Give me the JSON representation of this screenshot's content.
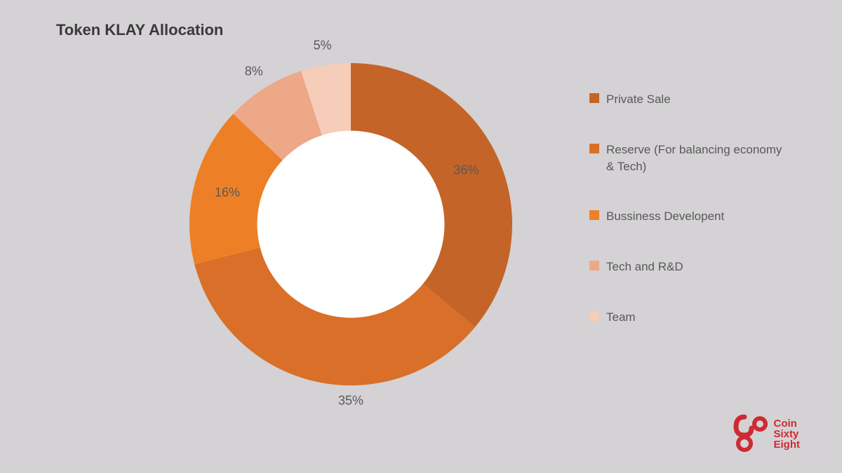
{
  "title": "Token KLAY Allocation",
  "chart": {
    "type": "donut",
    "inner_radius_ratio": 0.58,
    "background_color": "#d4d2d4",
    "center_color": "#ffffff",
    "slices": [
      {
        "label": "Private Sale",
        "value": 36,
        "display": "36%",
        "color": "#c46428"
      },
      {
        "label": "Reserve (For balancing economy & Tech)",
        "value": 35,
        "display": "35%",
        "color": "#d96f28"
      },
      {
        "label": "Bussiness Developent",
        "value": 16,
        "display": "16%",
        "color": "#ed8026"
      },
      {
        "label": "Tech and R&D",
        "value": 8,
        "display": "8%",
        "color": "#eda887"
      },
      {
        "label": "Team",
        "value": 5,
        "display": "5%",
        "color": "#f5cdb8"
      }
    ],
    "label_fontsize": 18,
    "label_color": "#595959"
  },
  "legend": {
    "items": [
      {
        "label": "Private Sale",
        "color": "#c46428"
      },
      {
        "label": "Reserve (For balancing economy & Tech)",
        "color": "#d96f28"
      },
      {
        "label": "Bussiness Developent",
        "color": "#ed8026"
      },
      {
        "label": "Tech and R&D",
        "color": "#eda887"
      },
      {
        "label": "Team",
        "color": "#f5cdb8"
      }
    ],
    "swatch_size": 14,
    "label_fontsize": 17,
    "label_color": "#595959"
  },
  "logo": {
    "lines": [
      "Coin",
      "Sixty",
      "Eight"
    ],
    "color": "#cc2b33"
  }
}
